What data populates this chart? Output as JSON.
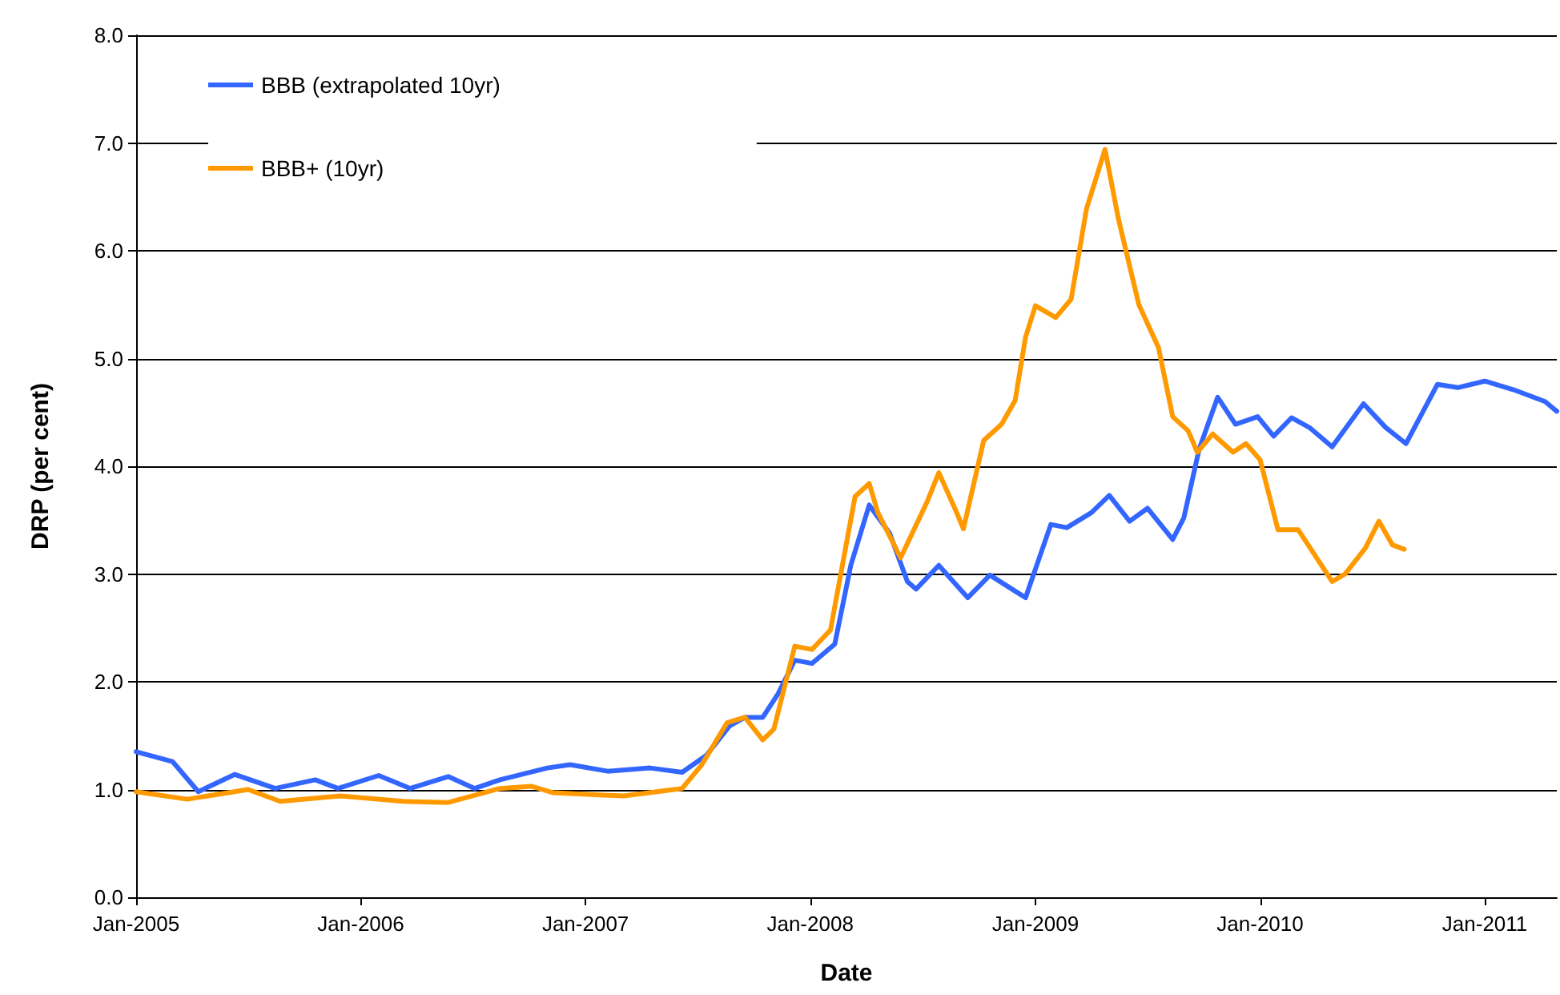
{
  "chart_data": {
    "type": "line",
    "xlabel": "Date",
    "ylabel": "DRP (per cent)",
    "xlim": [
      "2005-01-01",
      "2011-04-28"
    ],
    "xticks": [
      {
        "value": "2005-01-01",
        "label": "Jan-2005"
      },
      {
        "value": "2006-01-01",
        "label": "Jan-2006"
      },
      {
        "value": "2007-01-01",
        "label": "Jan-2007"
      },
      {
        "value": "2008-01-01",
        "label": "Jan-2008"
      },
      {
        "value": "2009-01-01",
        "label": "Jan-2009"
      },
      {
        "value": "2010-01-01",
        "label": "Jan-2010"
      },
      {
        "value": "2011-01-01",
        "label": "Jan-2011"
      }
    ],
    "ylim": [
      0,
      8
    ],
    "yticks": [
      {
        "value": 0,
        "label": "0.0"
      },
      {
        "value": 1,
        "label": "1.0"
      },
      {
        "value": 2,
        "label": "2.0"
      },
      {
        "value": 3,
        "label": "3.0"
      },
      {
        "value": 4,
        "label": "4.0"
      },
      {
        "value": 5,
        "label": "5.0"
      },
      {
        "value": 6,
        "label": "6.0"
      },
      {
        "value": 7,
        "label": "7.0"
      },
      {
        "value": 8,
        "label": "8.0"
      }
    ],
    "grid": "y",
    "legend": "top left",
    "marker": "none",
    "line_style": "solid",
    "series": [
      {
        "name": "BBB (extrapolated 10yr)",
        "color": "#3366ff",
        "x": [
          "2005-01-01",
          "2005-03-01",
          "2005-04-12",
          "2005-06-10",
          "2005-08-15",
          "2005-10-19",
          "2005-11-25",
          "2006-01-30",
          "2006-03-22",
          "2006-05-23",
          "2006-07-05",
          "2006-08-15",
          "2006-10-31",
          "2006-12-07",
          "2007-02-06",
          "2007-04-16",
          "2007-06-07",
          "2007-07-17",
          "2007-08-23",
          "2007-09-17",
          "2007-10-16",
          "2007-11-10",
          "2007-12-07",
          "2008-01-04",
          "2008-02-10",
          "2008-03-07",
          "2008-04-06",
          "2008-05-09",
          "2008-06-07",
          "2008-06-21",
          "2008-07-28",
          "2008-09-13",
          "2008-10-19",
          "2008-12-16",
          "2009-01-26",
          "2009-02-21",
          "2009-04-02",
          "2009-05-01",
          "2009-06-03",
          "2009-07-02",
          "2009-08-12",
          "2009-08-30",
          "2009-09-24",
          "2009-10-24",
          "2009-11-22",
          "2009-12-28",
          "2010-01-23",
          "2010-02-21",
          "2010-03-22",
          "2010-04-28",
          "2010-06-18",
          "2010-07-24",
          "2010-08-26",
          "2010-10-16",
          "2010-11-18",
          "2011-01-01",
          "2011-02-17",
          "2011-04-09",
          "2011-04-28"
        ],
        "values": [
          1.35,
          1.26,
          0.98,
          1.14,
          1.01,
          1.09,
          1.01,
          1.13,
          1.01,
          1.12,
          1.01,
          1.09,
          1.2,
          1.23,
          1.17,
          1.2,
          1.16,
          1.32,
          1.59,
          1.67,
          1.67,
          1.89,
          2.2,
          2.17,
          2.35,
          3.08,
          3.64,
          3.38,
          2.93,
          2.86,
          3.08,
          2.78,
          2.99,
          2.78,
          3.46,
          3.43,
          3.57,
          3.73,
          3.49,
          3.61,
          3.32,
          3.52,
          4.16,
          4.64,
          4.39,
          4.46,
          4.28,
          4.45,
          4.36,
          4.18,
          4.58,
          4.36,
          4.21,
          4.76,
          4.73,
          4.79,
          4.71,
          4.6,
          4.51
        ]
      },
      {
        "name": "BBB+ (10yr)",
        "color": "#ff9900",
        "x": [
          "2005-01-01",
          "2005-03-25",
          "2005-07-02",
          "2005-08-23",
          "2005-11-29",
          "2006-03-11",
          "2006-05-23",
          "2006-08-15",
          "2006-10-05",
          "2006-11-10",
          "2007-03-04",
          "2007-06-07",
          "2007-07-09",
          "2007-08-19",
          "2007-09-17",
          "2007-10-16",
          "2007-11-03",
          "2007-12-07",
          "2008-01-04",
          "2008-02-03",
          "2008-03-14",
          "2008-04-06",
          "2008-04-20",
          "2008-05-27",
          "2008-07-09",
          "2008-07-28",
          "2008-08-23",
          "2008-09-06",
          "2008-10-09",
          "2008-11-07",
          "2008-11-29",
          "2008-12-16",
          "2009-01-01",
          "2009-02-03",
          "2009-02-28",
          "2009-03-25",
          "2009-04-24",
          "2009-05-16",
          "2009-06-18",
          "2009-07-20",
          "2009-08-12",
          "2009-09-06",
          "2009-09-21",
          "2009-10-16",
          "2009-11-18",
          "2009-12-09",
          "2010-01-01",
          "2010-01-30",
          "2010-03-04",
          "2010-04-28",
          "2010-05-19",
          "2010-06-21",
          "2010-07-13",
          "2010-08-04",
          "2010-08-23"
        ],
        "values": [
          0.98,
          0.91,
          1.0,
          0.89,
          0.94,
          0.89,
          0.88,
          1.01,
          1.03,
          0.97,
          0.94,
          1.01,
          1.23,
          1.62,
          1.67,
          1.46,
          1.56,
          2.33,
          2.3,
          2.48,
          3.72,
          3.84,
          3.57,
          3.15,
          3.67,
          3.94,
          3.61,
          3.42,
          4.24,
          4.39,
          4.61,
          5.2,
          5.49,
          5.38,
          5.55,
          6.39,
          6.94,
          6.29,
          5.5,
          5.1,
          4.46,
          4.33,
          4.13,
          4.3,
          4.13,
          4.21,
          4.06,
          3.41,
          3.41,
          2.93,
          3.0,
          3.24,
          3.49,
          3.27,
          3.23
        ]
      }
    ]
  }
}
